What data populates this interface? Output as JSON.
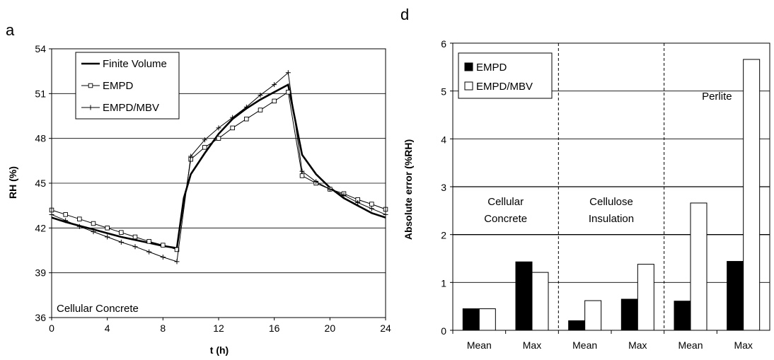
{
  "chart_data": [
    {
      "type": "line",
      "panel_label": "a",
      "xlabel": "t (h)",
      "ylabel": "RH (%)",
      "xlim": [
        0,
        24
      ],
      "ylim": [
        36,
        54
      ],
      "xticks": [
        "0",
        "4",
        "8",
        "12",
        "16",
        "20",
        "24"
      ],
      "yticks": [
        "36",
        "39",
        "42",
        "45",
        "48",
        "51",
        "54"
      ],
      "grid": "horizontal",
      "legend_position": "top-left",
      "annotation": "Cellular Concrete",
      "series": [
        {
          "name": "Finite Volume",
          "marker": "none",
          "x": [
            0,
            1,
            2,
            3,
            4,
            5,
            6,
            7,
            8,
            9,
            9.5,
            10,
            11,
            12,
            13,
            14,
            15,
            16,
            17,
            18,
            19,
            20,
            21,
            22,
            23,
            24
          ],
          "y": [
            42.7,
            42.4,
            42.15,
            41.9,
            41.65,
            41.4,
            41.2,
            41.0,
            40.8,
            40.65,
            44.0,
            45.6,
            47.0,
            48.3,
            49.3,
            50.0,
            50.6,
            51.1,
            51.6,
            46.9,
            45.6,
            44.7,
            44.0,
            43.5,
            43.0,
            42.7
          ]
        },
        {
          "name": "EMPD",
          "marker": "square",
          "x": [
            0,
            1,
            2,
            3,
            4,
            5,
            6,
            7,
            8,
            9,
            10,
            11,
            12,
            13,
            14,
            15,
            16,
            17,
            18,
            19,
            20,
            21,
            22,
            23,
            24
          ],
          "y": [
            43.2,
            42.9,
            42.6,
            42.3,
            42.0,
            41.7,
            41.4,
            41.1,
            40.85,
            40.55,
            46.6,
            47.4,
            48.0,
            48.7,
            49.3,
            49.9,
            50.5,
            51.1,
            45.5,
            45.0,
            44.6,
            44.3,
            43.9,
            43.6,
            43.25
          ]
        },
        {
          "name": "EMPD/MBV",
          "marker": "plus",
          "x": [
            0,
            1,
            2,
            3,
            4,
            5,
            6,
            7,
            8,
            9,
            10,
            11,
            12,
            13,
            14,
            15,
            16,
            17,
            18,
            19,
            20,
            21,
            22,
            23,
            24
          ],
          "y": [
            42.9,
            42.5,
            42.1,
            41.75,
            41.4,
            41.05,
            40.75,
            40.4,
            40.05,
            39.75,
            46.8,
            47.9,
            48.7,
            49.4,
            50.1,
            50.9,
            51.6,
            52.4,
            45.8,
            45.1,
            44.6,
            44.2,
            43.7,
            43.3,
            42.9
          ]
        }
      ]
    },
    {
      "type": "bar",
      "panel_label": "d",
      "xlabel": "",
      "ylabel": "Absolute error (%RH)",
      "ylim": [
        0,
        6
      ],
      "yticks": [
        "0",
        "1",
        "2",
        "3",
        "4",
        "5",
        "6"
      ],
      "grid": "horizontal",
      "legend_position": "top-left",
      "categories": [
        "Mean",
        "Max",
        "Mean",
        "Max",
        "Mean",
        "Max"
      ],
      "groups": [
        {
          "label": "Cellular\nConcrete",
          "start": 0,
          "end": 1
        },
        {
          "label": "Cellulose\nInsulation",
          "start": 2,
          "end": 3
        },
        {
          "label": "Perlite",
          "start": 4,
          "end": 5
        }
      ],
      "series": [
        {
          "name": "EMPD",
          "fill": "#000000",
          "values": [
            0.45,
            1.43,
            0.2,
            0.65,
            0.61,
            1.44
          ]
        },
        {
          "name": "EMPD/MBV",
          "fill": "#ffffff",
          "values": [
            0.45,
            1.21,
            0.62,
            1.38,
            2.66,
            5.66
          ]
        }
      ]
    }
  ]
}
